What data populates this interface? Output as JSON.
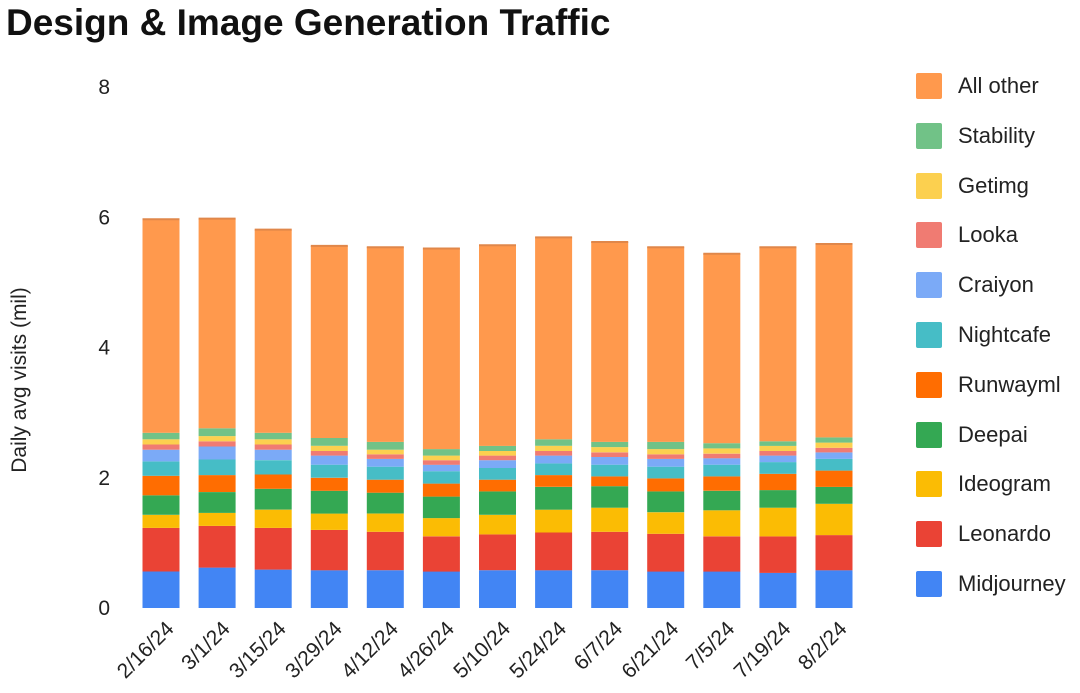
{
  "chart_data": {
    "type": "bar",
    "stacked": true,
    "title": "Design & Image Generation Traffic",
    "xlabel": "",
    "ylabel": "Daily avg visits (mil)",
    "ylim": [
      0,
      8
    ],
    "yticks": [
      0,
      2,
      4,
      6,
      8
    ],
    "grid": false,
    "legend_position": "right",
    "categories": [
      "2/16/24",
      "3/1/24",
      "3/15/24",
      "3/29/24",
      "4/12/24",
      "4/26/24",
      "5/10/24",
      "5/24/24",
      "6/7/24",
      "6/21/24",
      "7/5/24",
      "7/19/24",
      "8/2/24"
    ],
    "series": [
      {
        "name": "Midjourney",
        "color": "#4285f4",
        "values": [
          0.56,
          0.62,
          0.59,
          0.58,
          0.58,
          0.56,
          0.58,
          0.58,
          0.58,
          0.56,
          0.56,
          0.54,
          0.58
        ]
      },
      {
        "name": "Leonardo",
        "color": "#ea4335",
        "values": [
          0.67,
          0.64,
          0.64,
          0.62,
          0.59,
          0.54,
          0.55,
          0.58,
          0.59,
          0.58,
          0.54,
          0.56,
          0.54
        ]
      },
      {
        "name": "Ideogram",
        "color": "#fbbc04",
        "values": [
          0.2,
          0.2,
          0.28,
          0.25,
          0.28,
          0.28,
          0.3,
          0.35,
          0.37,
          0.33,
          0.4,
          0.44,
          0.48
        ]
      },
      {
        "name": "Deepai",
        "color": "#34a853",
        "values": [
          0.3,
          0.32,
          0.32,
          0.35,
          0.32,
          0.33,
          0.36,
          0.35,
          0.33,
          0.32,
          0.3,
          0.27,
          0.26
        ]
      },
      {
        "name": "Runwayml",
        "color": "#ff6d01",
        "values": [
          0.3,
          0.26,
          0.22,
          0.2,
          0.2,
          0.2,
          0.18,
          0.18,
          0.15,
          0.2,
          0.22,
          0.25,
          0.25
        ]
      },
      {
        "name": "Nightcafe",
        "color": "#46bdc6",
        "values": [
          0.22,
          0.24,
          0.22,
          0.2,
          0.2,
          0.19,
          0.18,
          0.18,
          0.18,
          0.18,
          0.18,
          0.18,
          0.18
        ]
      },
      {
        "name": "Craiyon",
        "color": "#7baaf7",
        "values": [
          0.18,
          0.2,
          0.16,
          0.14,
          0.12,
          0.1,
          0.12,
          0.12,
          0.12,
          0.12,
          0.1,
          0.1,
          0.1
        ]
      },
      {
        "name": "Looka",
        "color": "#f07b72",
        "values": [
          0.08,
          0.08,
          0.08,
          0.07,
          0.07,
          0.07,
          0.07,
          0.07,
          0.07,
          0.07,
          0.07,
          0.07,
          0.07
        ]
      },
      {
        "name": "Getimg",
        "color": "#fcd04f",
        "values": [
          0.08,
          0.08,
          0.08,
          0.08,
          0.07,
          0.07,
          0.07,
          0.08,
          0.08,
          0.08,
          0.08,
          0.08,
          0.08
        ]
      },
      {
        "name": "Stability",
        "color": "#71c287",
        "values": [
          0.1,
          0.12,
          0.1,
          0.12,
          0.12,
          0.1,
          0.08,
          0.1,
          0.08,
          0.11,
          0.08,
          0.07,
          0.08
        ]
      },
      {
        "name": "All other",
        "color": "#ff994d",
        "values": [
          3.28,
          3.22,
          3.12,
          2.95,
          2.99,
          3.08,
          3.08,
          3.1,
          3.07,
          2.99,
          2.91,
          2.98,
          2.97
        ]
      }
    ]
  }
}
